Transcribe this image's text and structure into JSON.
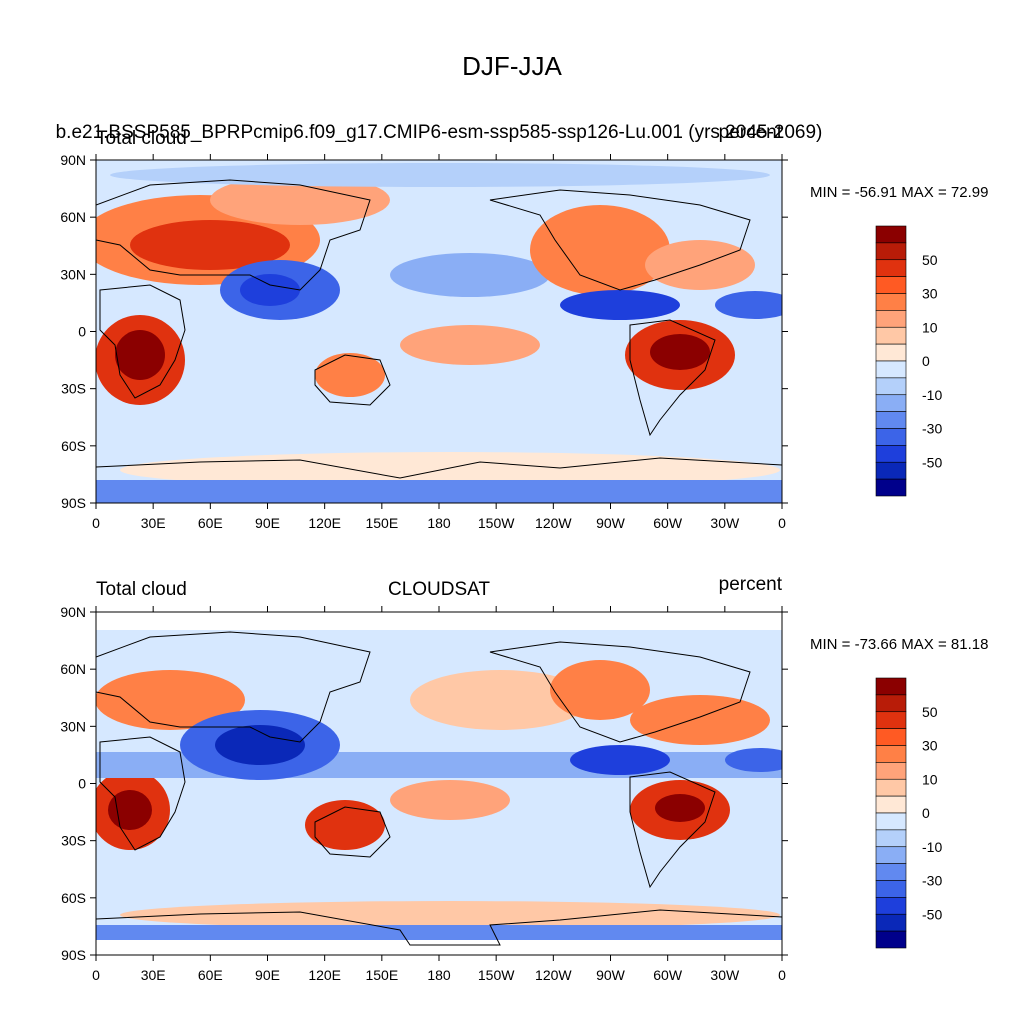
{
  "figure": {
    "title": "DJF-JJA"
  },
  "panels": [
    {
      "left_label": "Total cloud",
      "center_label": "b.e21.BSSP585_BPRPcmip6.f09_g17.CMIP6-esm-ssp585-ssp126-Lu.001 (yrs 2045-2069)",
      "right_label": "percent",
      "minmax_text": "MIN = -56.91 MAX =  72.99"
    },
    {
      "left_label": "Total cloud",
      "center_label": "CLOUDSAT",
      "right_label": "percent",
      "minmax_text": "MIN = -73.66 MAX =  81.18"
    }
  ],
  "axes": {
    "lat_ticks": [
      "90N",
      "60N",
      "30N",
      "0",
      "30S",
      "60S",
      "90S"
    ],
    "lon_ticks": [
      "0",
      "30E",
      "60E",
      "90E",
      "120E",
      "150E",
      "180",
      "150W",
      "120W",
      "90W",
      "60W",
      "30W",
      "0"
    ]
  },
  "colorbar": {
    "labels": [
      "50",
      "30",
      "10",
      "0",
      "-10",
      "-30",
      "-50"
    ],
    "colors": [
      "#8b0000",
      "#b81c08",
      "#e0320f",
      "#ff5a23",
      "#ff8046",
      "#ffa37a",
      "#ffc8a6",
      "#ffe8d6",
      "#d6e8ff",
      "#b4d0fa",
      "#8aaef5",
      "#6189f0",
      "#3c64e8",
      "#1e3fdc",
      "#0a28b8",
      "#00008b"
    ]
  }
}
